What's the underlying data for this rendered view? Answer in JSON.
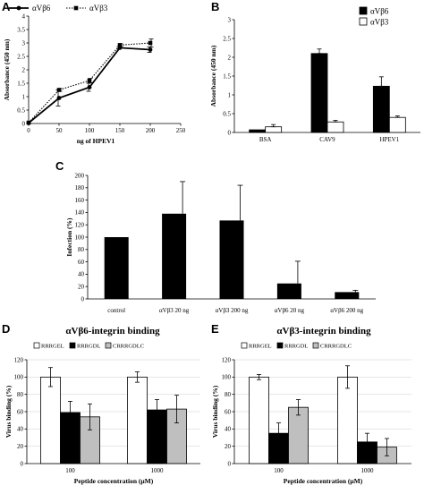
{
  "chart_data": [
    {
      "panel": "A",
      "type": "line",
      "xlabel": "ng of HPEV1",
      "ylabel": "Absorbance (450 nm)",
      "xlim": [
        0,
        250
      ],
      "ylim": [
        0,
        4
      ],
      "xticks": [
        "0",
        "50",
        "100",
        "150",
        "200",
        "250"
      ],
      "yticks": [
        "0",
        "0.5",
        "1",
        "1.5",
        "2",
        "2.5",
        "3",
        "3.5",
        "4"
      ],
      "legend": [
        "αVβ6",
        "αVβ3"
      ],
      "x": [
        0,
        50,
        100,
        150,
        200
      ],
      "series": [
        {
          "name": "αVβ6",
          "values": [
            0.02,
            0.95,
            1.35,
            2.82,
            2.75
          ],
          "errors": [
            0.02,
            0.3,
            0.15,
            0.05,
            0.1
          ],
          "style": "solid",
          "marker": "circle"
        },
        {
          "name": "αVβ3",
          "values": [
            0.03,
            1.25,
            1.6,
            2.92,
            3.0
          ],
          "errors": [
            0.02,
            0.05,
            0.08,
            0.05,
            0.15
          ],
          "style": "dotted",
          "marker": "square"
        }
      ]
    },
    {
      "panel": "B",
      "type": "bar",
      "xlabel": "",
      "ylabel": "Absorbance (450 nm)",
      "ylim": [
        0,
        3
      ],
      "yticks": [
        "0",
        "0.5",
        "1",
        "1.5",
        "2",
        "2.5",
        "3"
      ],
      "categories": [
        "BSA",
        "CAV9",
        "HPEV1"
      ],
      "legend": [
        "αVβ6",
        "αVβ3"
      ],
      "series": [
        {
          "name": "αVβ6",
          "values": [
            0.07,
            2.1,
            1.23
          ],
          "errors": [
            0.0,
            0.12,
            0.25
          ],
          "color": "#000000"
        },
        {
          "name": "αVβ3",
          "values": [
            0.15,
            0.28,
            0.4
          ],
          "errors": [
            0.06,
            0.04,
            0.04
          ],
          "color": "#ffffff"
        }
      ]
    },
    {
      "panel": "C",
      "type": "bar",
      "xlabel": "",
      "ylabel": "Infection (%)",
      "ylim": [
        0,
        200
      ],
      "yticks": [
        "0",
        "20",
        "40",
        "60",
        "80",
        "100",
        "120",
        "140",
        "160",
        "180",
        "200"
      ],
      "categories": [
        "control",
        "αVβ3 20 ng",
        "αVβ3 200 ng",
        "αVβ6 20 ng",
        "αVβ6 200 ng"
      ],
      "series": [
        {
          "values": [
            100,
            138,
            127,
            25,
            11
          ],
          "errors": [
            0,
            52,
            57,
            36,
            3
          ],
          "color": "#000000"
        }
      ]
    },
    {
      "panel": "D",
      "type": "bar",
      "title": "αVβ6-integrin binding",
      "xlabel": "Peptide concentration (μM)",
      "ylabel": "Virus binding (%)",
      "ylim": [
        0,
        120
      ],
      "yticks": [
        "0",
        "20",
        "40",
        "60",
        "80",
        "100",
        "120"
      ],
      "categories": [
        "100",
        "1000"
      ],
      "legend": [
        "RRRGEL",
        "RRRGDL",
        "CRRRGDLC"
      ],
      "series": [
        {
          "name": "RRRGEL",
          "values": [
            100,
            100
          ],
          "errors": [
            11,
            6
          ],
          "color": "#ffffff"
        },
        {
          "name": "RRRGDL",
          "values": [
            59,
            62
          ],
          "errors": [
            13,
            12
          ],
          "color": "#000000"
        },
        {
          "name": "CRRRGDLC",
          "values": [
            54,
            63
          ],
          "errors": [
            15,
            16
          ],
          "color": "#bfbfbf"
        }
      ]
    },
    {
      "panel": "E",
      "type": "bar",
      "title": "αVβ3-integrin binding",
      "xlabel": "Peptide concentration (μM)",
      "ylabel": "Virus binding (%)",
      "ylim": [
        0,
        120
      ],
      "yticks": [
        "0",
        "20",
        "40",
        "60",
        "80",
        "100",
        "120"
      ],
      "categories": [
        "100",
        "1000"
      ],
      "legend": [
        "RRRGEL",
        "RRRGDL",
        "CRRRGDLC"
      ],
      "series": [
        {
          "name": "RRRGEL",
          "values": [
            100,
            100
          ],
          "errors": [
            3,
            13
          ],
          "color": "#ffffff"
        },
        {
          "name": "RRRGDL",
          "values": [
            35,
            25
          ],
          "errors": [
            12,
            10
          ],
          "color": "#000000"
        },
        {
          "name": "CRRRGDLC",
          "values": [
            65,
            19
          ],
          "errors": [
            9,
            10
          ],
          "color": "#bfbfbf"
        }
      ]
    }
  ]
}
